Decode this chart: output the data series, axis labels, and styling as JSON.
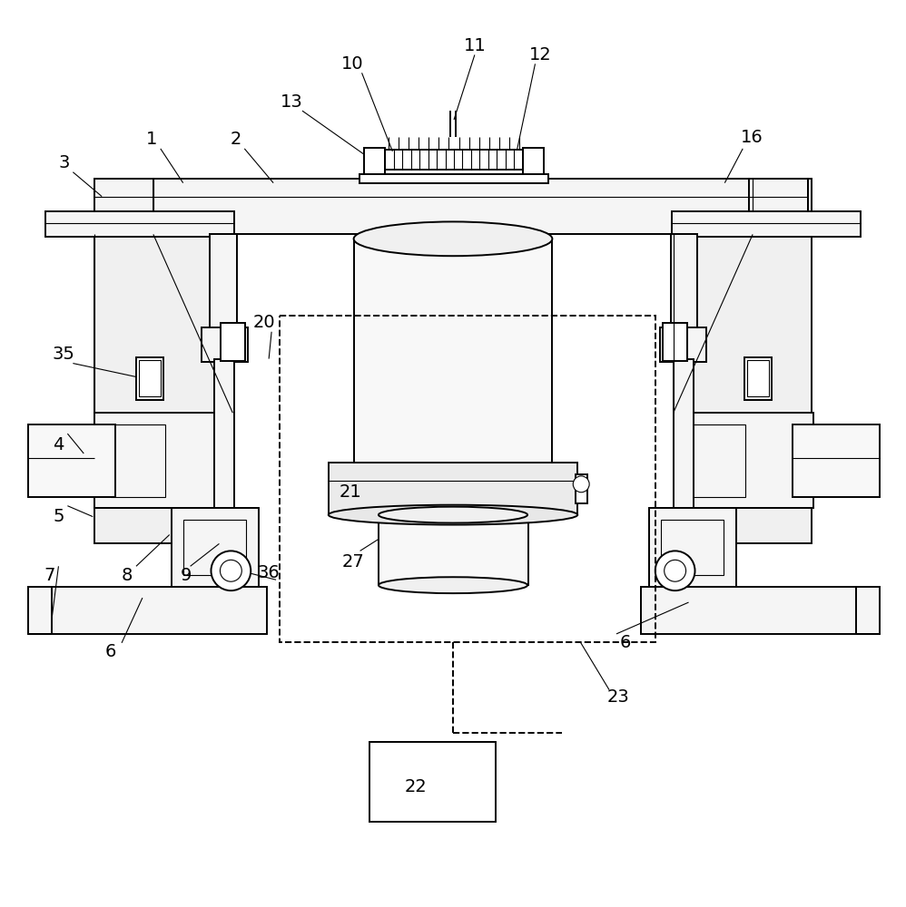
{
  "bg_color": "#ffffff",
  "lc": "#000000",
  "lw": 1.4,
  "lw_thin": 0.8,
  "fig_w": 9.98,
  "fig_h": 10.0
}
